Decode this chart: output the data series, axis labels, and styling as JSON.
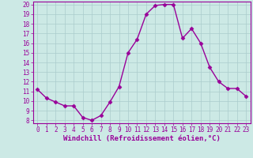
{
  "x": [
    0,
    1,
    2,
    3,
    4,
    5,
    6,
    7,
    8,
    9,
    10,
    11,
    12,
    13,
    14,
    15,
    16,
    17,
    18,
    19,
    20,
    21,
    22,
    23
  ],
  "y": [
    11.2,
    10.3,
    9.9,
    9.5,
    9.5,
    8.3,
    8.0,
    8.5,
    9.9,
    11.5,
    15.0,
    16.4,
    19.0,
    19.9,
    20.0,
    20.0,
    16.5,
    17.5,
    16.0,
    13.5,
    12.0,
    11.3,
    11.3,
    10.5
  ],
  "line_color": "#990099",
  "marker": "D",
  "marker_size": 2.5,
  "bg_color": "#cce9e5",
  "grid_color": "#aacccc",
  "xlabel": "Windchill (Refroidissement éolien,°C)",
  "ylim": [
    7.7,
    20.3
  ],
  "xlim": [
    -0.5,
    23.5
  ],
  "yticks": [
    8,
    9,
    10,
    11,
    12,
    13,
    14,
    15,
    16,
    17,
    18,
    19,
    20
  ],
  "xticks": [
    0,
    1,
    2,
    3,
    4,
    5,
    6,
    7,
    8,
    9,
    10,
    11,
    12,
    13,
    14,
    15,
    16,
    17,
    18,
    19,
    20,
    21,
    22,
    23
  ],
  "tick_color": "#990099",
  "label_color": "#990099",
  "tick_fontsize": 5.5,
  "xlabel_fontsize": 6.5,
  "linewidth": 1.0
}
